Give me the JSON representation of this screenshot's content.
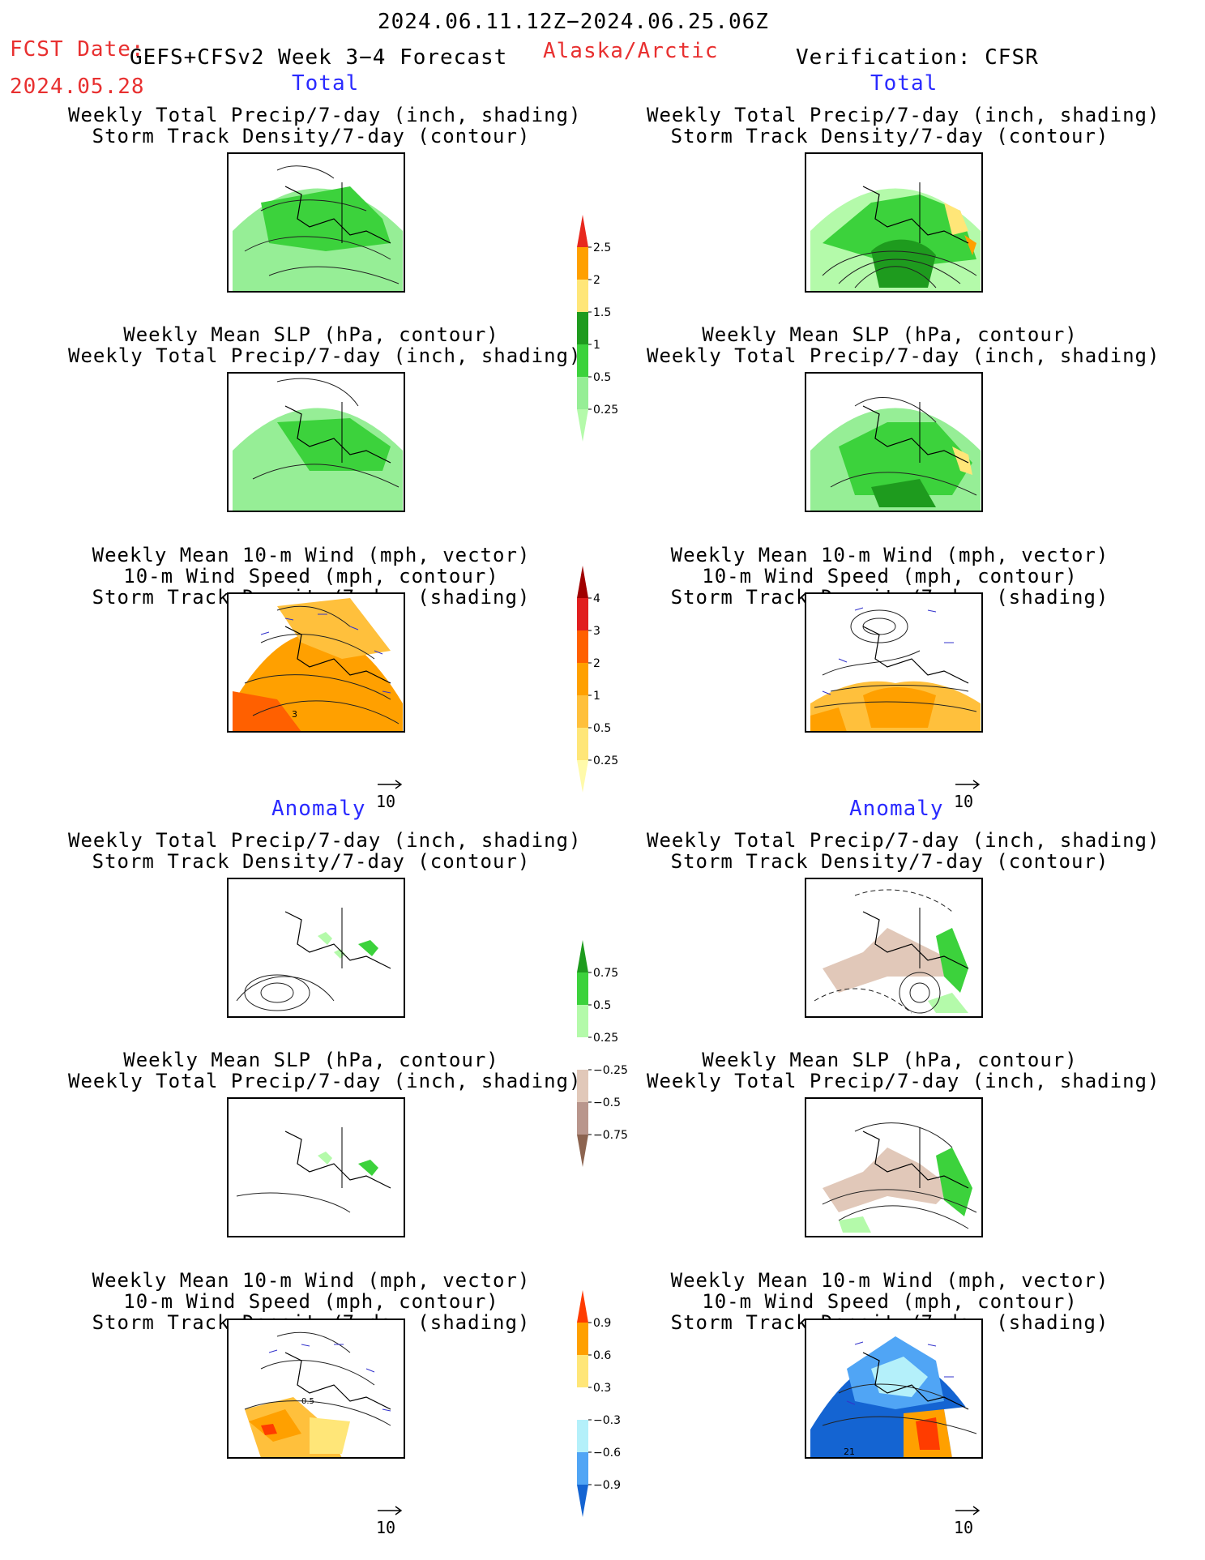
{
  "header": {
    "date_range": "2024.06.11.12Z−2024.06.25.06Z",
    "fcst_date_label": "FCST Date:",
    "forecast_name": "GEFS+CFSv2 Week 3−4 Forecast",
    "region": "Alaska/Arctic",
    "verification": "Verification: CFSR",
    "fcst_date": "2024.05.28"
  },
  "sections": {
    "total_left": "Total",
    "total_right": "Total",
    "anomaly_left": "Anomaly",
    "anomaly_right": "Anomaly"
  },
  "titles": {
    "precip_storm": [
      "Weekly Total Precip/7-day (inch, shading)",
      "Storm Track Density/7-day (contour)"
    ],
    "slp_precip": [
      "Weekly Mean SLP (hPa, contour)",
      "Weekly Total Precip/7-day (inch, shading)"
    ],
    "wind": [
      "Weekly Mean 10-m Wind (mph, vector)",
      "10-m Wind Speed (mph, contour)",
      "Storm Track Density/7-day (shading)"
    ]
  },
  "vector_ref": "10",
  "colorbars": {
    "precip_total": {
      "labels": [
        "2.5",
        "2",
        "1.5",
        "1",
        "0.5",
        "0.25"
      ],
      "colors": [
        "#e8281e",
        "#ffa000",
        "#ffe678",
        "#1e9b1e",
        "#3cd23c",
        "#96ee96",
        "#b4faaa"
      ]
    },
    "storm_total": {
      "labels": [
        "4",
        "3",
        "2",
        "1",
        "0.5",
        "0.25"
      ],
      "colors": [
        "#a00000",
        "#e11e1e",
        "#ff6000",
        "#ffa000",
        "#ffc03c",
        "#ffe678",
        "#fffaaa"
      ]
    },
    "precip_anom": {
      "labels": [
        "0.75",
        "0.5",
        "0.25",
        "−0.25",
        "−0.5",
        "−0.75"
      ],
      "colors": [
        "#1e9b1e",
        "#3cd23c",
        "#b4faaa",
        "#ffffff",
        "#e1c8b9",
        "#b9968c",
        "#8c6450"
      ]
    },
    "storm_anom": {
      "labels": [
        "0.9",
        "0.6",
        "0.3",
        "−0.3",
        "−0.6",
        "−0.9"
      ],
      "colors": [
        "#ff3c00",
        "#ffa000",
        "#ffe678",
        "#ffffff",
        "#b4f0fa",
        "#50a5f5",
        "#1464d2"
      ]
    }
  },
  "panel_annotations": {
    "total_wind_left_label": "3",
    "anom_wind_left_label": "0.5",
    "anom_wind_right_label": "21"
  }
}
